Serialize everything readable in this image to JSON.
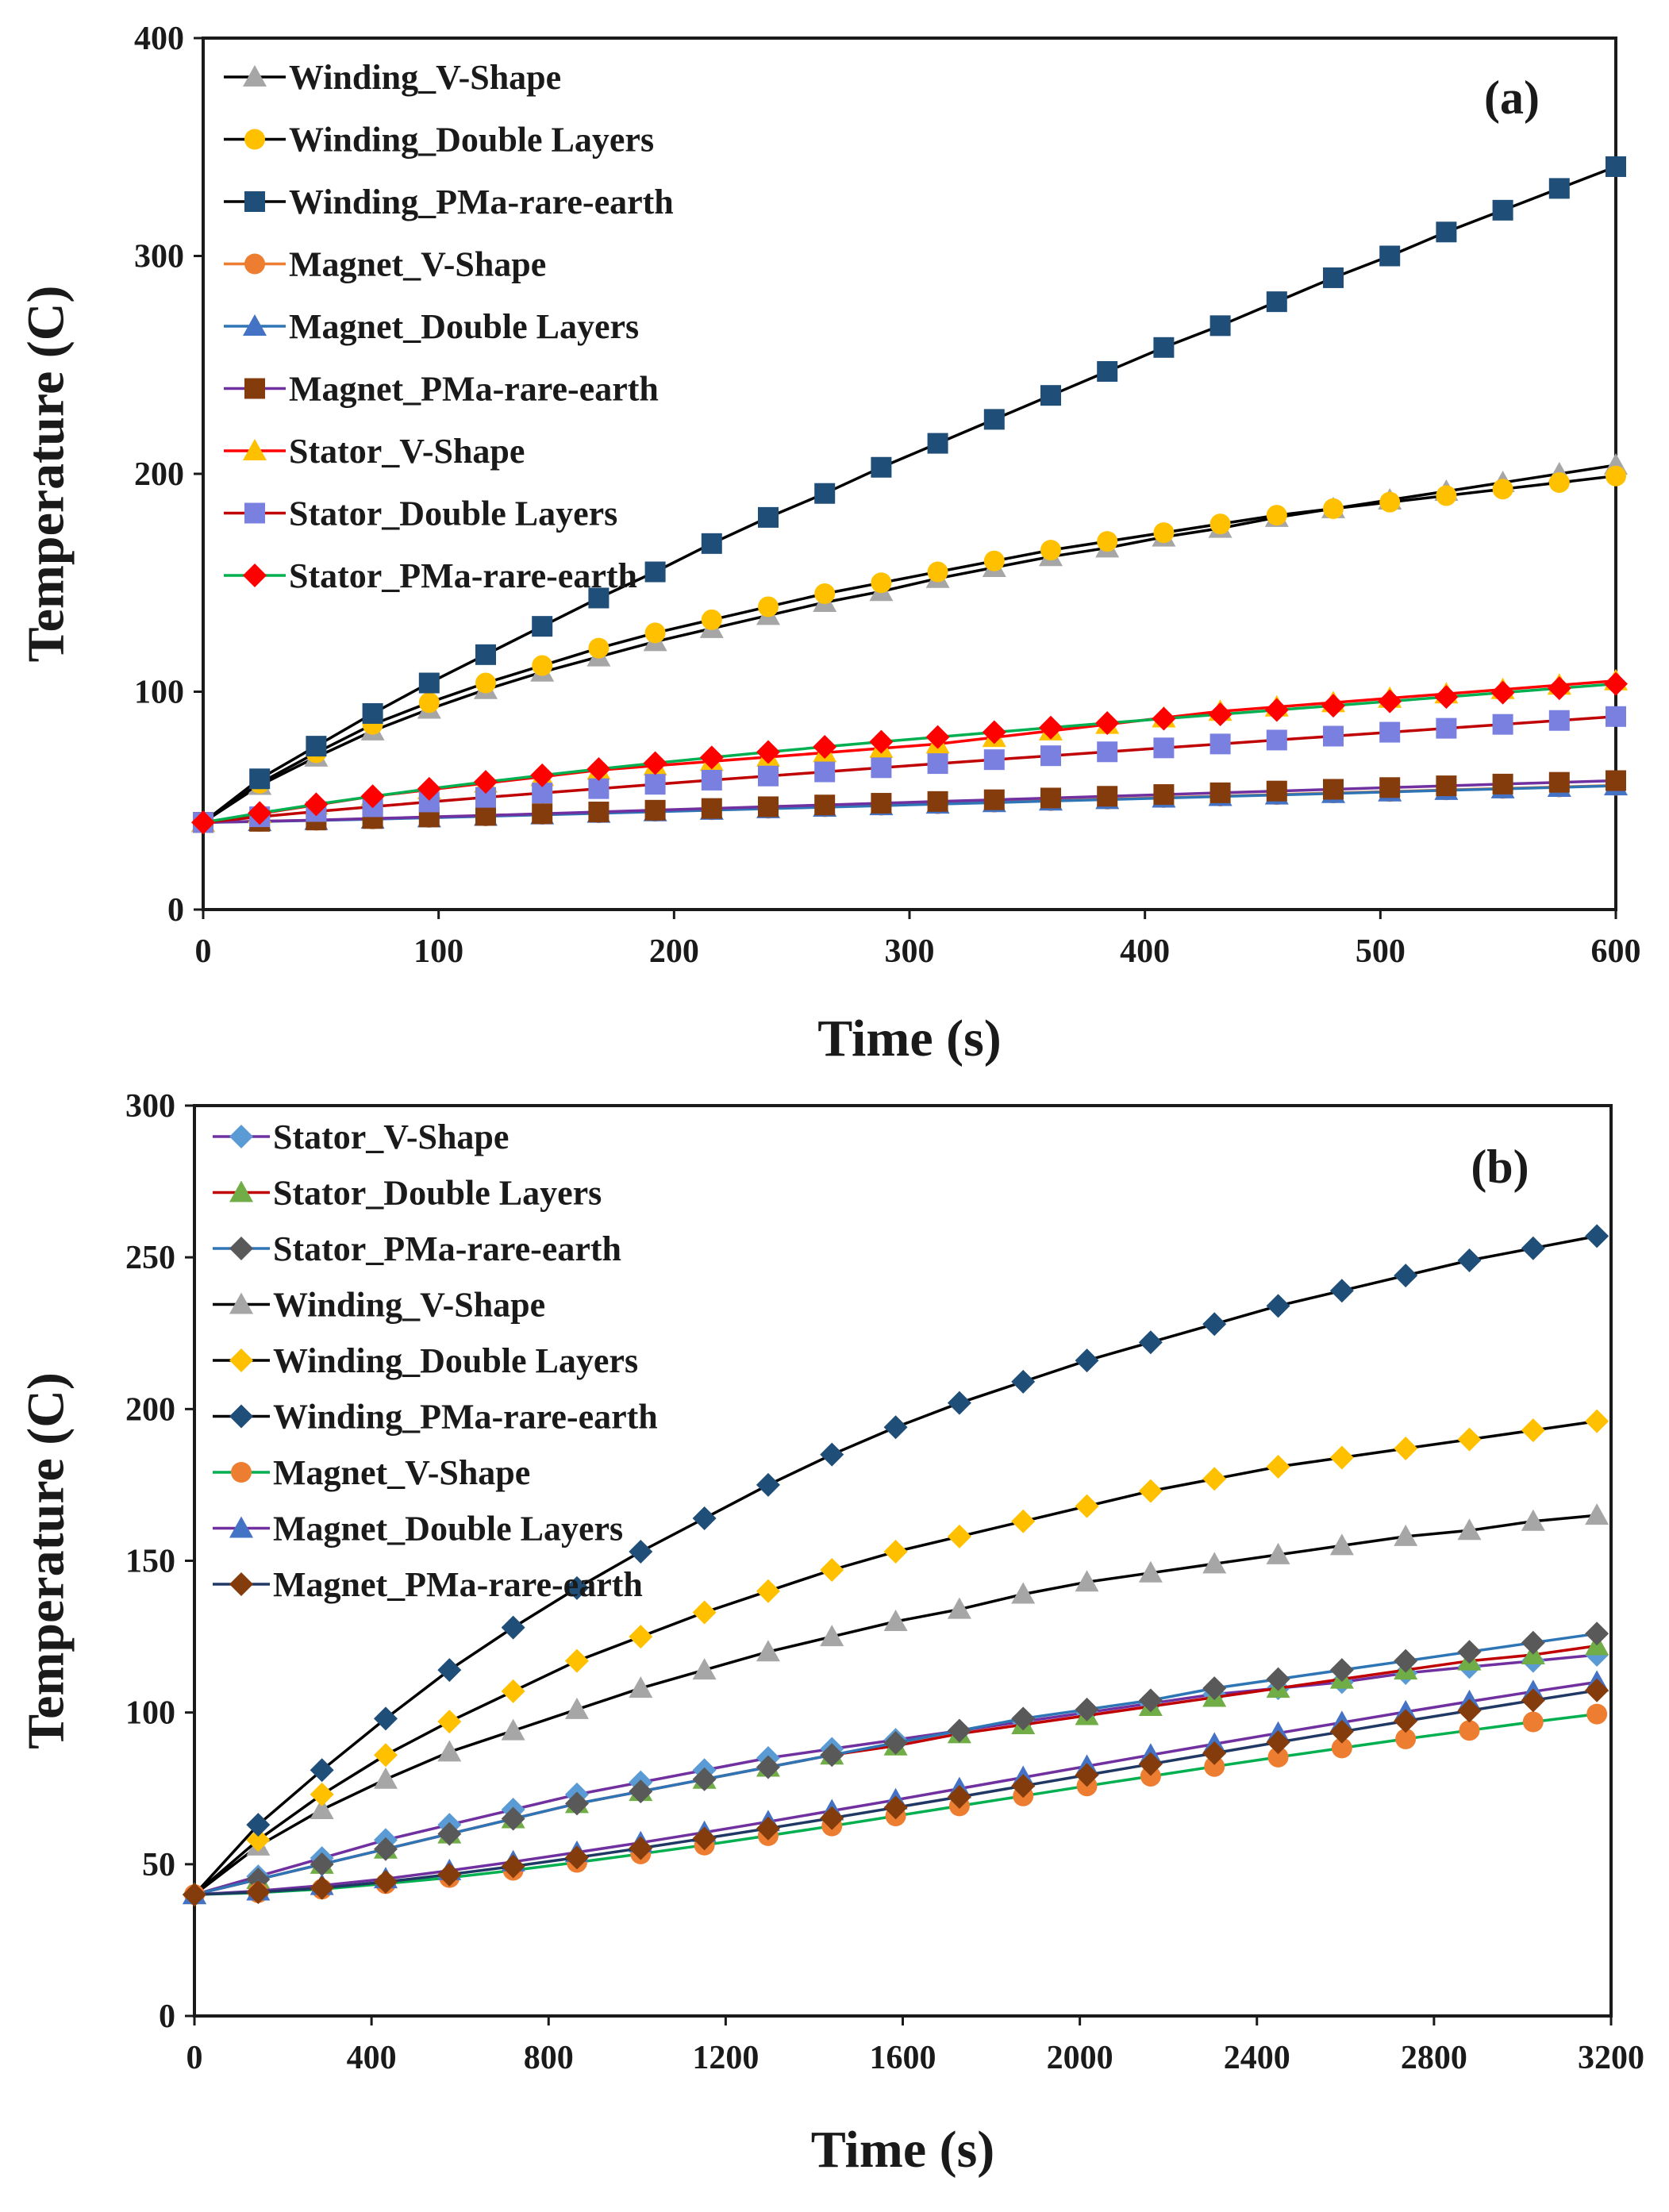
{
  "chart_data": [
    {
      "type": "line",
      "panel_label": "(a)",
      "xlabel": "Time (s)",
      "ylabel": "Temperature (C)",
      "xlim": [
        0,
        600
      ],
      "ylim": [
        0,
        400
      ],
      "xticks": [
        0,
        100,
        200,
        300,
        400,
        500,
        600
      ],
      "yticks": [
        0,
        100,
        200,
        300,
        400
      ],
      "xtick_labels": [
        "0",
        "100",
        "200",
        "300",
        "400",
        "500",
        "600"
      ],
      "ytick_labels": [
        "0",
        "100",
        "200",
        "300",
        "400"
      ],
      "legend_position": "top-left",
      "x": [
        0,
        24,
        48,
        72,
        96,
        120,
        144,
        168,
        192,
        216,
        240,
        264,
        288,
        312,
        336,
        360,
        384,
        408,
        432,
        456,
        480,
        504,
        528,
        552,
        576,
        600
      ],
      "series": [
        {
          "name": "Winding_V-Shape",
          "color": "#a6a6a6",
          "line_color": "#000000",
          "marker": "triangle",
          "values": [
            40,
            57,
            70,
            82,
            92,
            101,
            109,
            116,
            123,
            129,
            135,
            141,
            146,
            152,
            157,
            162,
            166,
            171,
            175,
            180,
            184,
            188,
            192,
            196,
            200,
            204
          ]
        },
        {
          "name": "Winding_Double Layers",
          "color": "#ffc000",
          "line_color": "#000000",
          "marker": "circle",
          "values": [
            40,
            58,
            72,
            85,
            95,
            104,
            112,
            120,
            127,
            133,
            139,
            145,
            150,
            155,
            160,
            165,
            169,
            173,
            177,
            181,
            184,
            187,
            190,
            193,
            196,
            199
          ]
        },
        {
          "name": "Winding_PMa-rare-earth",
          "color": "#1f4e79",
          "line_color": "#000000",
          "marker": "square",
          "values": [
            40,
            60,
            75,
            90,
            104,
            117,
            130,
            143,
            155,
            168,
            180,
            191,
            203,
            214,
            225,
            236,
            247,
            258,
            268,
            279,
            290,
            300,
            311,
            321,
            331,
            341
          ]
        },
        {
          "name": "Magnet_V-Shape",
          "color": "#ed7d31",
          "line_color": "#ed7d31",
          "marker": "circle",
          "values": [
            40,
            40.5,
            41,
            41.6,
            42.3,
            43,
            43.7,
            44.4,
            45.1,
            45.8,
            46.5,
            47.2,
            47.9,
            48.6,
            49.3,
            50,
            50.7,
            51.4,
            52.1,
            52.8,
            53.5,
            54.2,
            54.9,
            55.6,
            56.3,
            57
          ]
        },
        {
          "name": "Magnet_Double Layers",
          "color": "#4472c4",
          "line_color": "#2e75b6",
          "marker": "triangle",
          "values": [
            40,
            40.4,
            40.9,
            41.5,
            42.1,
            42.8,
            43.5,
            44.2,
            44.9,
            45.6,
            46.3,
            47,
            47.7,
            48.4,
            49.1,
            49.8,
            50.5,
            51.2,
            51.9,
            52.6,
            53.3,
            54,
            54.7,
            55.4,
            56.1,
            56.8
          ]
        },
        {
          "name": "Magnet_PMa-rare-earth",
          "color": "#843c0c",
          "line_color": "#7030a0",
          "marker": "square",
          "values": [
            40,
            40.5,
            41.1,
            41.8,
            42.5,
            43.2,
            44,
            44.8,
            45.6,
            46.4,
            47.2,
            48,
            48.8,
            49.6,
            50.4,
            51.2,
            52,
            52.8,
            53.6,
            54.4,
            55.2,
            56,
            56.8,
            57.6,
            58.4,
            59.2
          ]
        },
        {
          "name": "Stator_V-Shape",
          "color": "#ffc000",
          "line_color": "#ff0000",
          "marker": "triangle",
          "values": [
            40,
            44,
            48,
            52,
            55,
            58,
            61,
            64,
            66,
            68,
            70,
            72,
            74,
            76,
            79,
            82,
            85,
            88,
            91,
            93,
            95,
            97,
            99,
            101,
            103,
            105
          ]
        },
        {
          "name": "Stator_Double Layers",
          "color": "#7a80e0",
          "line_color": "#c00000",
          "marker": "square",
          "values": [
            40,
            42.6,
            45,
            47.2,
            49.4,
            51.5,
            53.5,
            55.5,
            57.5,
            59.4,
            61.3,
            63.2,
            65.1,
            67,
            68.8,
            70.6,
            72.4,
            74.2,
            76,
            77.8,
            79.6,
            81.4,
            83.2,
            85,
            86.8,
            88.6
          ]
        },
        {
          "name": "Stator_PMa-rare-earth",
          "color": "#ff0000",
          "line_color": "#00b050",
          "marker": "diamond",
          "values": [
            40,
            44.3,
            48.3,
            52,
            55.4,
            58.6,
            61.6,
            64.5,
            67.2,
            69.8,
            72.3,
            74.7,
            77,
            79.2,
            81.4,
            83.5,
            85.6,
            87.6,
            89.6,
            91.6,
            93.6,
            95.6,
            97.6,
            99.6,
            101.6,
            103.6
          ]
        }
      ]
    },
    {
      "type": "line",
      "panel_label": "(b)",
      "xlabel": "Time (s)",
      "ylabel": "Temperature (C)",
      "xlim": [
        0,
        3200
      ],
      "ylim": [
        0,
        300
      ],
      "xticks": [
        0,
        400,
        800,
        1200,
        1600,
        2000,
        2400,
        2800,
        3200
      ],
      "yticks": [
        0,
        50,
        100,
        150,
        200,
        250,
        300
      ],
      "xtick_labels": [
        "0",
        "400",
        "800",
        "1200",
        "1600",
        "2000",
        "2400",
        "2800",
        "3200"
      ],
      "ytick_labels": [
        "0",
        "50",
        "100",
        "150",
        "200",
        "250",
        "300"
      ],
      "legend_position": "top-left",
      "x": [
        0,
        144,
        288,
        432,
        576,
        720,
        864,
        1008,
        1152,
        1296,
        1440,
        1584,
        1728,
        1872,
        2016,
        2160,
        2304,
        2448,
        2592,
        2736,
        2880,
        3024,
        3168
      ],
      "series": [
        {
          "name": "Stator_V-Shape",
          "color": "#5b9bd5",
          "line_color": "#7030a0",
          "marker": "diamond",
          "values": [
            40,
            46,
            52,
            58,
            63,
            68,
            73,
            77,
            81,
            85,
            88,
            91,
            94,
            97,
            100,
            103,
            106,
            108,
            110,
            113,
            115,
            117,
            119
          ]
        },
        {
          "name": "Stator_Double Layers",
          "color": "#70ad47",
          "line_color": "#c00000",
          "marker": "triangle",
          "values": [
            40,
            45,
            50,
            55,
            60,
            65,
            70,
            74,
            78,
            82,
            86,
            89,
            93,
            96,
            99,
            102,
            105,
            108,
            111,
            114,
            117,
            119,
            122
          ]
        },
        {
          "name": "Stator_PMa-rare-earth",
          "color": "#595959",
          "line_color": "#2e75b6",
          "marker": "diamond",
          "values": [
            40,
            45,
            50,
            55,
            60,
            65,
            70,
            74,
            78,
            82,
            86,
            90,
            94,
            98,
            101,
            104,
            108,
            111,
            114,
            117,
            120,
            123,
            126
          ]
        },
        {
          "name": "Winding_V-Shape",
          "color": "#a6a6a6",
          "line_color": "#000000",
          "marker": "triangle",
          "values": [
            40,
            56,
            68,
            78,
            87,
            94,
            101,
            108,
            114,
            120,
            125,
            130,
            134,
            139,
            143,
            146,
            149,
            152,
            155,
            158,
            160,
            163,
            165
          ]
        },
        {
          "name": "Winding_Double Layers",
          "color": "#ffc000",
          "line_color": "#000000",
          "marker": "diamond",
          "values": [
            40,
            58,
            73,
            86,
            97,
            107,
            117,
            125,
            133,
            140,
            147,
            153,
            158,
            163,
            168,
            173,
            177,
            181,
            184,
            187,
            190,
            193,
            196
          ]
        },
        {
          "name": "Winding_PMa-rare-earth",
          "color": "#1f4e79",
          "line_color": "#000000",
          "marker": "diamond",
          "values": [
            40,
            63,
            81,
            98,
            114,
            128,
            141,
            153,
            164,
            175,
            185,
            194,
            202,
            209,
            216,
            222,
            228,
            234,
            239,
            244,
            249,
            253,
            257
          ]
        },
        {
          "name": "Magnet_V-Shape",
          "color": "#ed7d31",
          "line_color": "#00b050",
          "marker": "circle",
          "values": [
            40,
            40.6,
            41.8,
            43.6,
            45.6,
            48,
            50.6,
            53.4,
            56.3,
            59.4,
            62.6,
            65.9,
            69.2,
            72.5,
            75.8,
            79,
            82.2,
            85.3,
            88.3,
            91.3,
            94.1,
            96.9,
            99.5
          ]
        },
        {
          "name": "Magnet_Double Layers",
          "color": "#4472c4",
          "line_color": "#7030a0",
          "marker": "triangle",
          "values": [
            40,
            41.2,
            43,
            45.2,
            47.9,
            50.8,
            53.9,
            57.1,
            60.5,
            64,
            67.6,
            71.2,
            74.9,
            78.6,
            82.3,
            86,
            89.6,
            93.2,
            96.7,
            100.2,
            103.6,
            106.9,
            110
          ]
        },
        {
          "name": "Magnet_PMa-rare-earth",
          "color": "#843c0c",
          "line_color": "#203864",
          "marker": "diamond",
          "values": [
            40,
            40.8,
            42.2,
            44.2,
            46.6,
            49.3,
            52.2,
            55.3,
            58.5,
            61.8,
            65.2,
            68.7,
            72.2,
            75.8,
            79.4,
            83,
            86.6,
            90.2,
            93.7,
            97.2,
            100.6,
            104,
            107.3
          ]
        }
      ]
    }
  ]
}
